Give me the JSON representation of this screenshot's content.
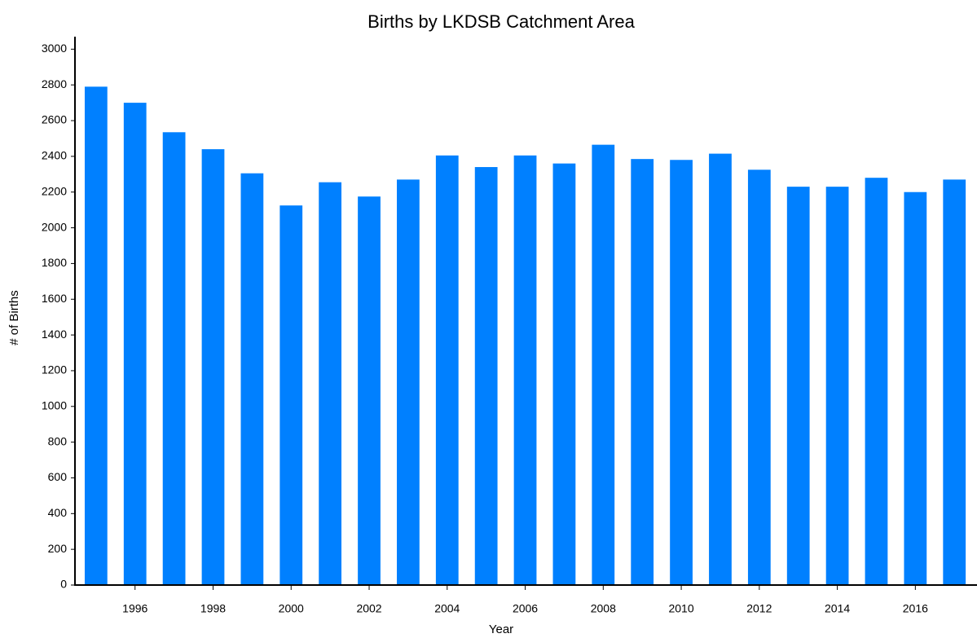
{
  "chart_data": {
    "type": "bar",
    "title": "Births by LKDSB Catchment Area",
    "x_label": "Year",
    "y_label": "# of Births",
    "x": [
      1995,
      1996,
      1997,
      1998,
      1999,
      2000,
      2001,
      2002,
      2003,
      2004,
      2005,
      2006,
      2007,
      2008,
      2009,
      2010,
      2011,
      2012,
      2013,
      2014,
      2015,
      2016,
      2017
    ],
    "values": [
      2790,
      2700,
      2535,
      2440,
      2305,
      2125,
      2255,
      2175,
      2270,
      2405,
      2340,
      2405,
      2360,
      2465,
      2385,
      2380,
      2415,
      2325,
      2230,
      2230,
      2280,
      2200,
      2270
    ],
    "color": "#0080ff",
    "xlim": [
      1994.46,
      2017.58
    ],
    "xticks": [
      1996,
      1998,
      2000,
      2002,
      2004,
      2006,
      2008,
      2010,
      2012,
      2014,
      2016
    ],
    "ylim": [
      0,
      3070
    ],
    "yticks": [
      0,
      200,
      400,
      600,
      800,
      1000,
      1200,
      1400,
      1600,
      1800,
      2000,
      2200,
      2400,
      2600,
      2800,
      3000
    ],
    "grid": false
  }
}
